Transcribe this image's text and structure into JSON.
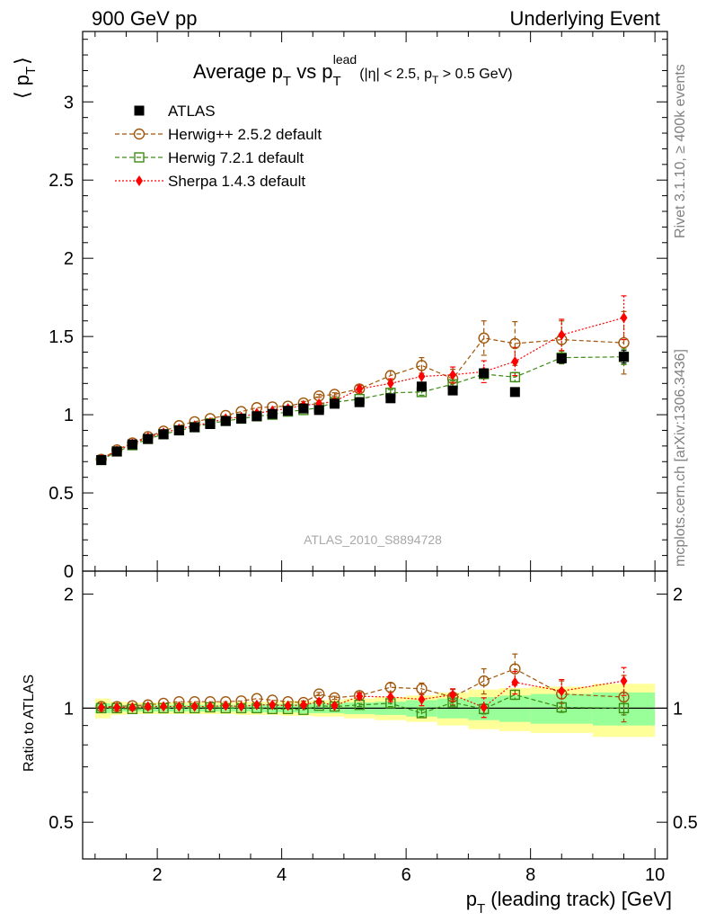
{
  "header": {
    "left": "900 GeV pp",
    "right": "Underlying Event"
  },
  "side_labels": {
    "rivet": "Rivet 3.1.10, ≥ 400k events",
    "mcplots": "mcplots.cern.ch [arXiv:1306.3436]"
  },
  "watermark": "ATLAS_2010_S8894728",
  "colors": {
    "atlas": "#000000",
    "herwigpp": "#a0550a",
    "herwig7": "#3c8c14",
    "sherpa": "#ff0000",
    "band_inner": "#99ff99",
    "band_outer": "#ffff99"
  },
  "chart_data": [
    {
      "type": "scatter",
      "title_parts": {
        "a": "Average p",
        "a_sub": "T",
        "b": " vs p",
        "b_sub": "T",
        "b_sup": "lead",
        "cut_a": "(|η| < 2.5, p",
        "cut_sub": "T",
        "cut_b": " > 0.5 GeV)"
      },
      "ylabel_parts": {
        "open": "⟨ p",
        "sub": "T",
        "close": "⟩"
      },
      "xlim": [
        0.8,
        10.2
      ],
      "ylim": [
        0,
        3.45
      ],
      "yticks": [
        "0",
        "0.5",
        "1",
        "1.5",
        "2",
        "2.5",
        "3"
      ],
      "legend_position": "top-left",
      "x": [
        1.1,
        1.35,
        1.6,
        1.85,
        2.1,
        2.35,
        2.6,
        2.85,
        3.1,
        3.35,
        3.6,
        3.85,
        4.1,
        4.35,
        4.6,
        4.85,
        5.25,
        5.75,
        6.25,
        6.75,
        7.25,
        7.75,
        8.5,
        9.5
      ],
      "series": [
        {
          "name": "ATLAS",
          "key": "atlas",
          "marker": "filled-square",
          "line": "none",
          "values": [
            0.71,
            0.765,
            0.81,
            0.845,
            0.875,
            0.9,
            0.92,
            0.94,
            0.96,
            0.975,
            0.99,
            1.005,
            1.025,
            1.04,
            1.03,
            1.07,
            1.08,
            1.105,
            1.18,
            1.155,
            1.265,
            1.145,
            1.36,
            1.37
          ],
          "err": [
            0.01,
            0.01,
            0.01,
            0.01,
            0.01,
            0.01,
            0.01,
            0.01,
            0.01,
            0.01,
            0.01,
            0.01,
            0.01,
            0.01,
            0.01,
            0.01,
            0.01,
            0.015,
            0.02,
            0.02,
            0.02,
            0.02,
            0.03,
            0.04
          ]
        },
        {
          "name": "Herwig++ 2.5.2 default",
          "key": "herwigpp",
          "marker": "open-circle",
          "line": "dashed",
          "values": [
            0.715,
            0.775,
            0.82,
            0.86,
            0.895,
            0.93,
            0.955,
            0.975,
            0.995,
            1.02,
            1.045,
            1.05,
            1.055,
            1.075,
            1.12,
            1.13,
            1.165,
            1.25,
            1.315,
            1.23,
            1.49,
            1.455,
            1.48,
            1.46
          ],
          "err": [
            0.005,
            0.005,
            0.005,
            0.005,
            0.005,
            0.005,
            0.005,
            0.005,
            0.005,
            0.005,
            0.005,
            0.005,
            0.005,
            0.01,
            0.01,
            0.01,
            0.02,
            0.03,
            0.05,
            0.06,
            0.11,
            0.14,
            0.12,
            0.2
          ]
        },
        {
          "name": "Herwig 7.2.1 default",
          "key": "herwig7",
          "marker": "open-square",
          "line": "dashed",
          "values": [
            0.71,
            0.765,
            0.805,
            0.845,
            0.875,
            0.9,
            0.92,
            0.945,
            0.96,
            0.975,
            0.99,
            1.0,
            1.02,
            1.03,
            1.045,
            1.08,
            1.1,
            1.14,
            1.145,
            1.195,
            1.26,
            1.24,
            1.365,
            1.37
          ],
          "err": [
            0.004,
            0.004,
            0.004,
            0.004,
            0.004,
            0.004,
            0.004,
            0.004,
            0.004,
            0.004,
            0.004,
            0.004,
            0.005,
            0.005,
            0.005,
            0.005,
            0.01,
            0.02,
            0.02,
            0.02,
            0.03,
            0.03,
            0.04,
            0.05
          ]
        },
        {
          "name": "Sherpa 1.4.3 default",
          "key": "sherpa",
          "marker": "filled-diamond",
          "line": "dotted",
          "values": [
            0.715,
            0.77,
            0.815,
            0.855,
            0.885,
            0.91,
            0.93,
            0.95,
            0.975,
            0.985,
            1.01,
            1.025,
            1.04,
            1.06,
            1.07,
            1.085,
            1.165,
            1.2,
            1.245,
            1.255,
            1.275,
            1.34,
            1.51,
            1.62
          ],
          "err": [
            0.006,
            0.006,
            0.006,
            0.006,
            0.006,
            0.006,
            0.006,
            0.006,
            0.006,
            0.006,
            0.006,
            0.006,
            0.008,
            0.008,
            0.01,
            0.01,
            0.02,
            0.03,
            0.04,
            0.05,
            0.07,
            0.09,
            0.1,
            0.14
          ]
        }
      ]
    },
    {
      "type": "scatter",
      "ylabel": "Ratio to ATLAS",
      "xlabel_parts": {
        "a": "p",
        "sub": "T",
        "b": " (leading track) [GeV]"
      },
      "xlim": [
        0.8,
        10.2
      ],
      "ylim": [
        0.4,
        2.3
      ],
      "xticks": [
        "2",
        "4",
        "6",
        "8",
        "10"
      ],
      "yticks": [
        "0.5",
        "1",
        "2"
      ],
      "uncertainty_bands": {
        "x_edges": [
          1.0,
          1.25,
          1.5,
          1.75,
          2.0,
          2.25,
          2.5,
          2.75,
          3.0,
          3.25,
          3.5,
          3.75,
          4.0,
          4.25,
          4.5,
          4.75,
          5.0,
          5.5,
          6.0,
          6.5,
          7.0,
          7.5,
          8.0,
          9.0,
          10.0
        ],
        "inner": [
          0.03,
          0.02,
          0.02,
          0.02,
          0.02,
          0.02,
          0.02,
          0.02,
          0.02,
          0.02,
          0.025,
          0.025,
          0.025,
          0.03,
          0.03,
          0.03,
          0.035,
          0.04,
          0.05,
          0.06,
          0.07,
          0.08,
          0.09,
          0.1
        ],
        "outer": [
          0.06,
          0.04,
          0.035,
          0.035,
          0.035,
          0.035,
          0.035,
          0.035,
          0.035,
          0.04,
          0.04,
          0.04,
          0.045,
          0.045,
          0.05,
          0.05,
          0.06,
          0.07,
          0.08,
          0.1,
          0.12,
          0.13,
          0.14,
          0.16
        ]
      },
      "series": [
        {
          "name": "Herwig++ 2.5.2 default",
          "key": "herwigpp",
          "values": [
            1.01,
            1.01,
            1.015,
            1.02,
            1.03,
            1.04,
            1.04,
            1.04,
            1.04,
            1.045,
            1.06,
            1.05,
            1.04,
            1.035,
            1.09,
            1.065,
            1.08,
            1.135,
            1.125,
            1.07,
            1.18,
            1.27,
            1.09,
            1.07
          ],
          "err": [
            0.005,
            0.005,
            0.005,
            0.005,
            0.005,
            0.005,
            0.005,
            0.005,
            0.005,
            0.005,
            0.005,
            0.005,
            0.005,
            0.01,
            0.01,
            0.01,
            0.02,
            0.03,
            0.04,
            0.05,
            0.09,
            0.12,
            0.09,
            0.15
          ]
        },
        {
          "name": "Herwig 7.2.1 default",
          "key": "herwig7",
          "values": [
            1.0,
            1.0,
            0.995,
            1.0,
            1.0,
            1.0,
            1.0,
            1.005,
            1.0,
            1.0,
            1.0,
            0.995,
            0.995,
            0.99,
            1.015,
            1.01,
            1.02,
            1.03,
            0.97,
            1.035,
            0.995,
            1.085,
            1.005,
            1.0
          ],
          "err": [
            0.004,
            0.004,
            0.004,
            0.004,
            0.004,
            0.004,
            0.004,
            0.004,
            0.004,
            0.004,
            0.004,
            0.004,
            0.005,
            0.005,
            0.005,
            0.005,
            0.01,
            0.02,
            0.02,
            0.02,
            0.03,
            0.03,
            0.03,
            0.04
          ]
        },
        {
          "name": "Sherpa 1.4.3 default",
          "key": "sherpa",
          "values": [
            1.005,
            1.005,
            1.005,
            1.01,
            1.01,
            1.01,
            1.01,
            1.01,
            1.015,
            1.01,
            1.02,
            1.02,
            1.015,
            1.02,
            1.04,
            1.015,
            1.075,
            1.07,
            1.055,
            1.085,
            1.005,
            1.17,
            1.11,
            1.18
          ],
          "err": [
            0.006,
            0.006,
            0.006,
            0.006,
            0.006,
            0.006,
            0.006,
            0.006,
            0.006,
            0.006,
            0.006,
            0.006,
            0.008,
            0.008,
            0.01,
            0.01,
            0.02,
            0.03,
            0.04,
            0.04,
            0.06,
            0.08,
            0.08,
            0.1
          ]
        }
      ]
    }
  ]
}
